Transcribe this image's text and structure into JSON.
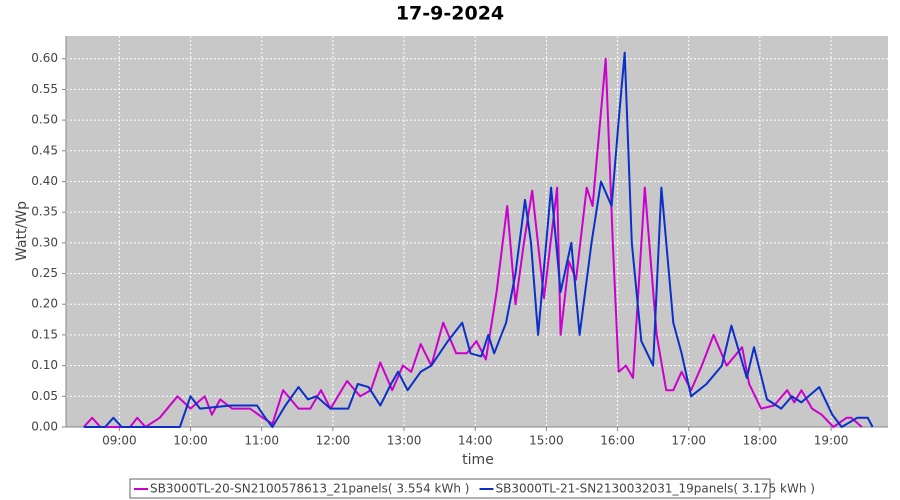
{
  "chart_data": {
    "type": "line",
    "title": "17-9-2024",
    "x_label": "time",
    "y_label": "Watt/Wp",
    "xlim": [
      "08:15",
      "19:48"
    ],
    "xticks": [
      "09:00",
      "10:00",
      "11:00",
      "12:00",
      "13:00",
      "14:00",
      "15:00",
      "16:00",
      "17:00",
      "18:00",
      "19:00"
    ],
    "ylim": [
      0,
      0.637
    ],
    "yticks": [
      {
        "value": 0,
        "label": "0.00"
      },
      {
        "value": 0.05,
        "label": "0.05"
      },
      {
        "value": 0.1,
        "label": "0.10"
      },
      {
        "value": 0.15,
        "label": "0.15"
      },
      {
        "value": 0.2,
        "label": "0.20"
      },
      {
        "value": 0.25,
        "label": "0.25"
      },
      {
        "value": 0.3,
        "label": "0.30"
      },
      {
        "value": 0.35,
        "label": "0.35"
      },
      {
        "value": 0.4,
        "label": "0.40"
      },
      {
        "value": 0.45,
        "label": "0.45"
      },
      {
        "value": 0.5,
        "label": "0.50"
      },
      {
        "value": 0.55,
        "label": "0.55"
      },
      {
        "value": 0.6,
        "label": "0.60"
      }
    ],
    "grid": true,
    "legend": "bottom",
    "series": [
      {
        "name": "SB3000TL-20-SN2100578613_21panels( 3.554 kWh )",
        "color": "#cc00cc",
        "x": [
          "08:30",
          "08:37",
          "08:44",
          "09:09",
          "09:15",
          "09:22",
          "09:34",
          "09:49",
          "10:00",
          "10:12",
          "10:18",
          "10:25",
          "10:35",
          "10:50",
          "11:01",
          "11:09",
          "11:18",
          "11:31",
          "11:41",
          "11:50",
          "11:58",
          "12:12",
          "12:23",
          "12:32",
          "12:40",
          "12:50",
          "12:59",
          "13:06",
          "13:14",
          "13:23",
          "13:33",
          "13:44",
          "13:53",
          "14:01",
          "14:09",
          "14:18",
          "14:27",
          "14:34",
          "14:41",
          "14:48",
          "14:58",
          "15:09",
          "15:12",
          "15:19",
          "15:25",
          "15:34",
          "15:39",
          "15:50",
          "15:56",
          "16:01",
          "16:07",
          "16:13",
          "16:23",
          "16:33",
          "16:41",
          "16:47",
          "16:54",
          "17:02",
          "17:11",
          "17:21",
          "17:32",
          "17:45",
          "17:51",
          "18:01",
          "18:12",
          "18:23",
          "18:29",
          "18:35",
          "18:44",
          "18:52",
          "19:02",
          "19:13",
          "19:17",
          "19:26"
        ],
        "values": [
          0,
          0.015,
          0,
          0,
          0.015,
          0,
          0.015,
          0.05,
          0.03,
          0.05,
          0.02,
          0.045,
          0.03,
          0.03,
          0.015,
          0.005,
          0.06,
          0.03,
          0.03,
          0.06,
          0.03,
          0.075,
          0.05,
          0.06,
          0.105,
          0.06,
          0.1,
          0.09,
          0.135,
          0.1,
          0.17,
          0.12,
          0.12,
          0.14,
          0.11,
          0.22,
          0.36,
          0.2,
          0.3,
          0.385,
          0.21,
          0.39,
          0.15,
          0.27,
          0.24,
          0.39,
          0.36,
          0.6,
          0.3,
          0.09,
          0.1,
          0.08,
          0.39,
          0.15,
          0.06,
          0.06,
          0.09,
          0.06,
          0.1,
          0.15,
          0.1,
          0.13,
          0.07,
          0.03,
          0.035,
          0.06,
          0.04,
          0.06,
          0.03,
          0.02,
          0,
          0.015,
          0.015,
          0
        ]
      },
      {
        "name": "SB3000TL-21-SN2130032031_19panels( 3.175 kWh )",
        "color": "#0a30c8",
        "x": [
          "08:30",
          "08:48",
          "08:55",
          "09:02",
          "09:51",
          "10:00",
          "10:08",
          "10:34",
          "10:56",
          "11:03",
          "11:09",
          "11:20",
          "11:31",
          "11:39",
          "11:46",
          "11:58",
          "12:13",
          "12:21",
          "12:30",
          "12:40",
          "12:49",
          "12:55",
          "13:03",
          "13:14",
          "13:23",
          "13:37",
          "13:49",
          "13:56",
          "14:05",
          "14:11",
          "14:16",
          "14:26",
          "14:34",
          "14:42",
          "14:47",
          "14:53",
          "15:04",
          "15:12",
          "15:21",
          "15:28",
          "15:38",
          "15:46",
          "15:55",
          "16:01",
          "16:06",
          "16:12",
          "16:20",
          "16:30",
          "16:37",
          "16:47",
          "16:54",
          "17:02",
          "17:15",
          "17:28",
          "17:36",
          "17:49",
          "17:55",
          "18:06",
          "18:18",
          "18:27",
          "18:35",
          "18:50",
          "19:01",
          "19:09",
          "19:22",
          "19:31",
          "19:35"
        ],
        "values": [
          0,
          0,
          0.015,
          0,
          0,
          0.05,
          0.03,
          0.035,
          0.035,
          0.015,
          0,
          0.035,
          0.065,
          0.045,
          0.05,
          0.03,
          0.03,
          0.07,
          0.065,
          0.035,
          0.07,
          0.09,
          0.06,
          0.09,
          0.1,
          0.14,
          0.17,
          0.12,
          0.115,
          0.15,
          0.12,
          0.17,
          0.25,
          0.37,
          0.3,
          0.15,
          0.39,
          0.22,
          0.3,
          0.15,
          0.3,
          0.4,
          0.36,
          0.5,
          0.61,
          0.3,
          0.14,
          0.1,
          0.39,
          0.17,
          0.12,
          0.05,
          0.07,
          0.1,
          0.165,
          0.08,
          0.13,
          0.045,
          0.03,
          0.05,
          0.04,
          0.065,
          0.02,
          0,
          0.015,
          0.015,
          0
        ]
      }
    ]
  }
}
